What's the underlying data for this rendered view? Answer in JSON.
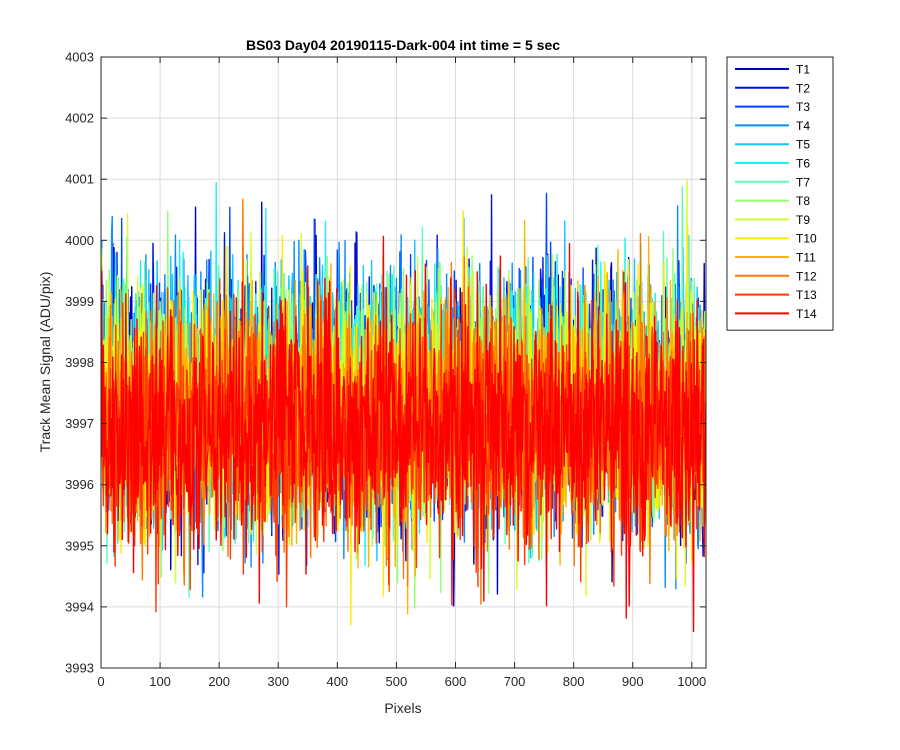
{
  "chart_data": {
    "type": "line",
    "title": "BS03 Day04 20190115-Dark-004 int time = 5 sec",
    "xlabel": "Pixels",
    "ylabel": "Track Mean Signal (ADU/pix)",
    "xlim": [
      0,
      1024
    ],
    "ylim": [
      3993,
      4003
    ],
    "xticks": [
      0,
      100,
      200,
      300,
      400,
      500,
      600,
      700,
      800,
      900,
      1000
    ],
    "yticks": [
      3993,
      3994,
      3995,
      3996,
      3997,
      3998,
      3999,
      4000,
      4001,
      4002,
      4003
    ],
    "grid": true,
    "legend_location": "outside-top-right",
    "x_range": [
      1,
      1024
    ],
    "series": [
      {
        "name": "T1",
        "color": "#0000bf",
        "mean": 3997.3,
        "std": 1.0,
        "values": []
      },
      {
        "name": "T2",
        "color": "#0013e0",
        "mean": 3997.3,
        "std": 1.0,
        "values": []
      },
      {
        "name": "T3",
        "color": "#0046ff",
        "mean": 3997.4,
        "std": 1.0,
        "values": []
      },
      {
        "name": "T4",
        "color": "#0a8cff",
        "mean": 3997.4,
        "std": 1.0,
        "values": []
      },
      {
        "name": "T5",
        "color": "#14c4ff",
        "mean": 3997.5,
        "std": 0.95,
        "values": []
      },
      {
        "name": "T6",
        "color": "#1ff0f0",
        "mean": 3997.4,
        "std": 0.95,
        "values": []
      },
      {
        "name": "T7",
        "color": "#5cffb0",
        "mean": 3997.4,
        "std": 0.95,
        "values": []
      },
      {
        "name": "T8",
        "color": "#96ff6e",
        "mean": 3997.3,
        "std": 0.95,
        "values": []
      },
      {
        "name": "T9",
        "color": "#d2ff2e",
        "mean": 3997.3,
        "std": 0.95,
        "values": []
      },
      {
        "name": "T10",
        "color": "#ffec00",
        "mean": 3997.2,
        "std": 0.95,
        "values": []
      },
      {
        "name": "T11",
        "color": "#ffb400",
        "mean": 3997.1,
        "std": 0.95,
        "values": []
      },
      {
        "name": "T12",
        "color": "#ff7800",
        "mean": 3997.0,
        "std": 0.95,
        "values": []
      },
      {
        "name": "T13",
        "color": "#ff3c00",
        "mean": 3996.9,
        "std": 0.95,
        "values": []
      },
      {
        "name": "T14",
        "color": "#ff0000",
        "mean": 3996.9,
        "std": 1.0,
        "values": []
      }
    ]
  }
}
